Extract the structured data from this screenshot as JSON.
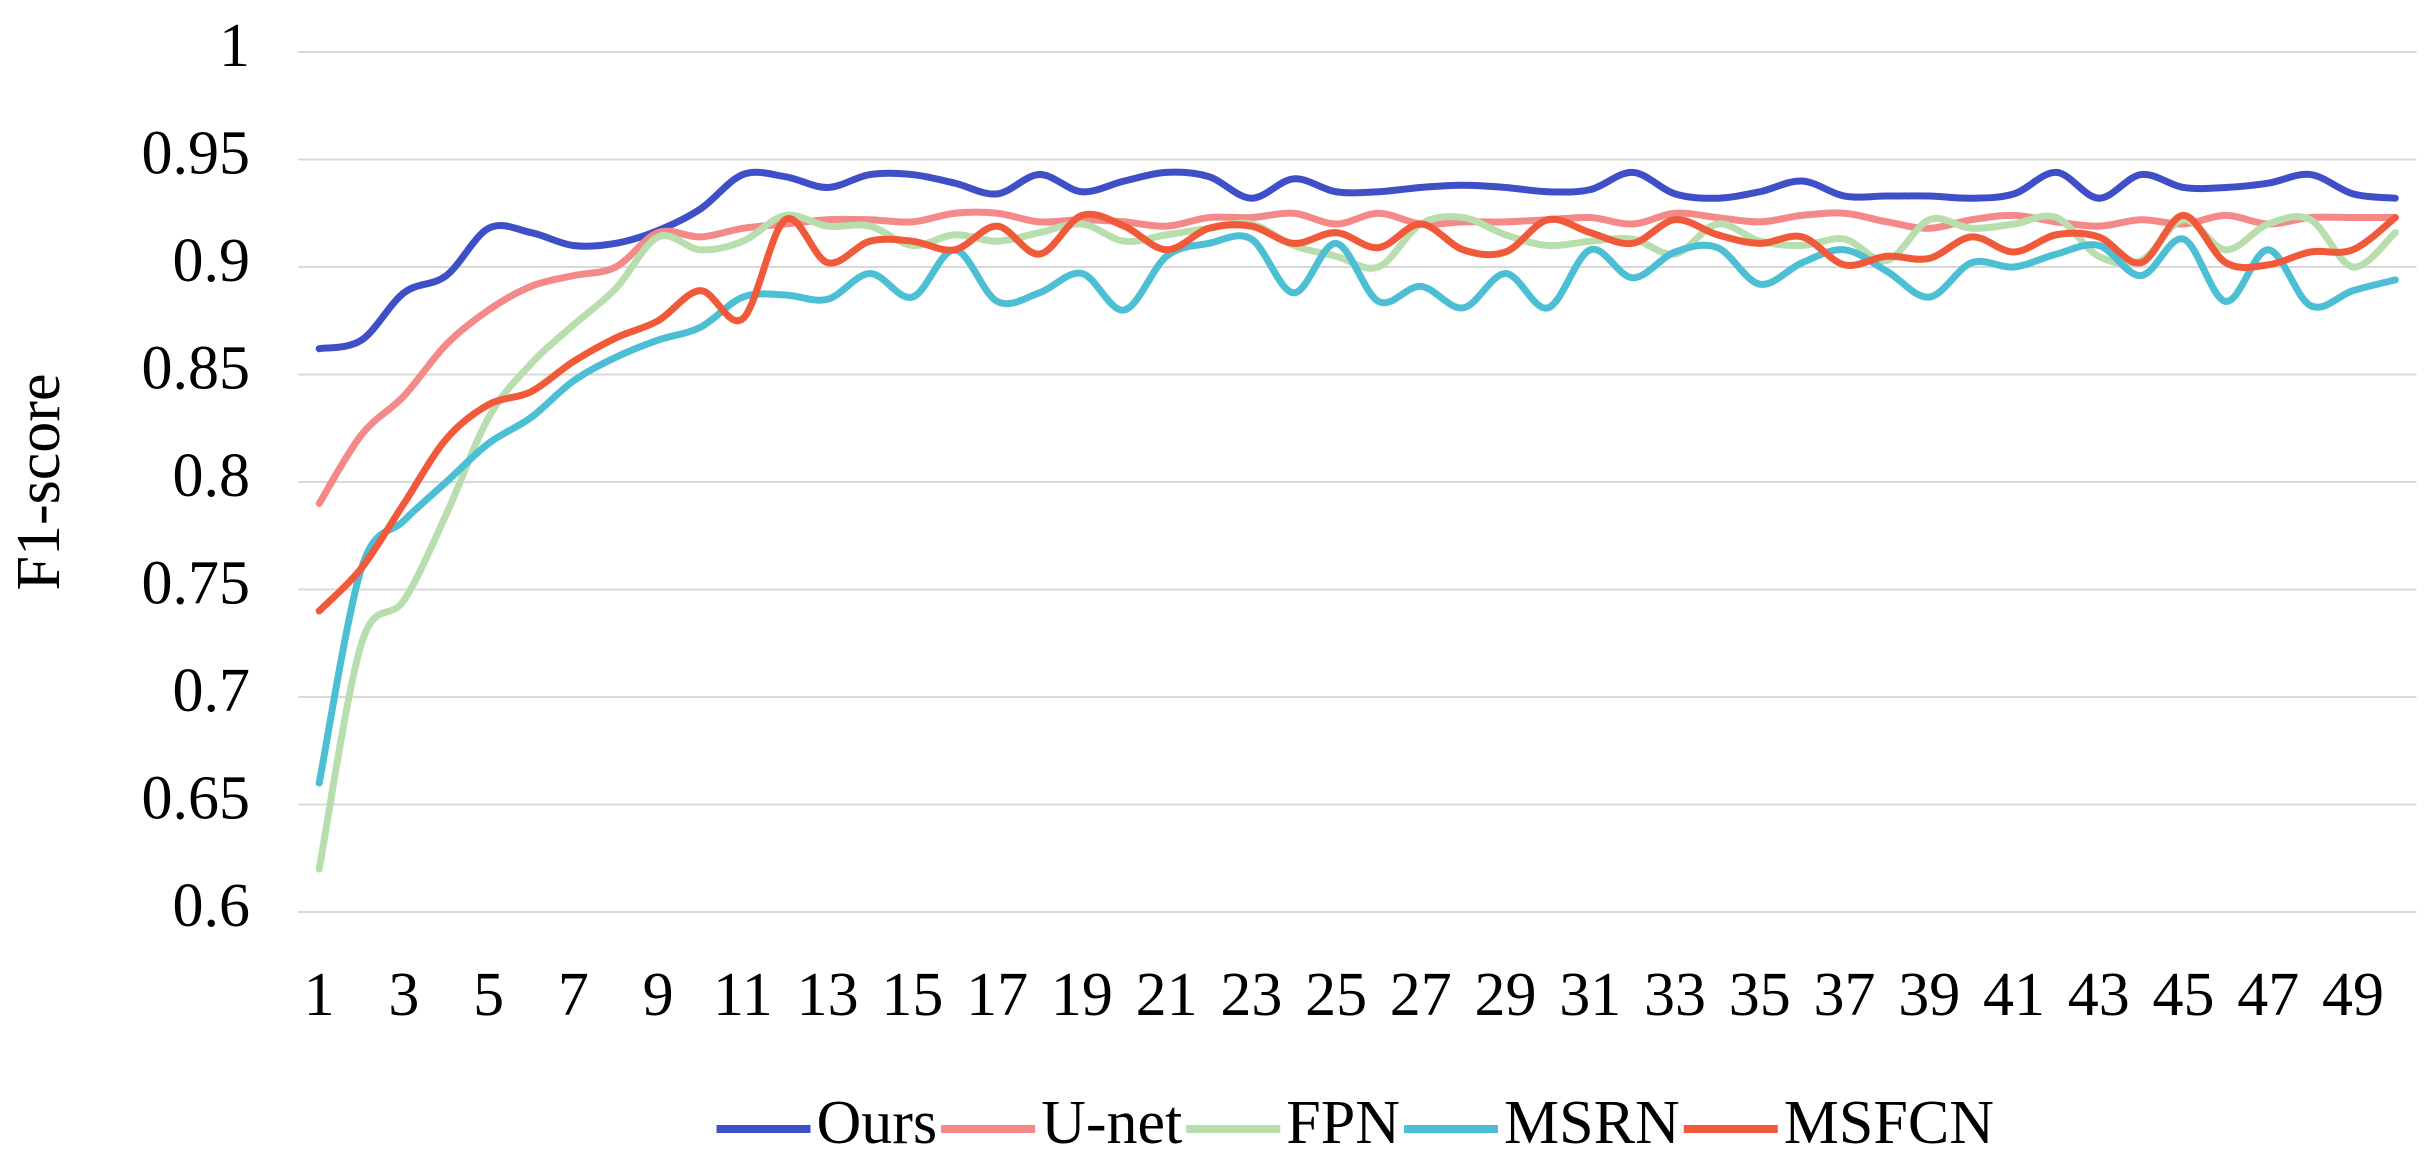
{
  "chart_data": {
    "type": "line",
    "y_label": "F1-score",
    "categories": [
      "1",
      null,
      "3",
      null,
      "5",
      null,
      "7",
      null,
      "9",
      null,
      "11",
      null,
      "13",
      null,
      "15",
      null,
      "17",
      null,
      "19",
      null,
      "21",
      null,
      "23",
      null,
      "25",
      null,
      "27",
      null,
      "29",
      null,
      "31",
      null,
      "33",
      null,
      "35",
      null,
      "37",
      null,
      "39",
      null,
      "41",
      null,
      "43",
      null,
      "45",
      null,
      "47",
      null,
      "49",
      null
    ],
    "ylim": [
      0.6,
      1
    ],
    "yticks": [
      0.6,
      0.65,
      0.7,
      0.75,
      0.8,
      0.85,
      0.9,
      0.95,
      1
    ],
    "grid": true,
    "legend": "bottom",
    "smooth": true,
    "series": [
      {
        "name": "Ours",
        "color": "#3f4fc7",
        "values": [
          0.862,
          0.866,
          0.888,
          0.896,
          0.918,
          0.916,
          0.91,
          0.911,
          0.917,
          0.927,
          0.943,
          0.942,
          0.937,
          0.943,
          0.943,
          0.939,
          0.934,
          0.943,
          0.935,
          0.94,
          0.944,
          0.942,
          0.932,
          0.941,
          0.935,
          0.935,
          0.937,
          0.938,
          0.937,
          0.935,
          0.936,
          0.944,
          0.934,
          0.932,
          0.935,
          0.94,
          0.933,
          0.933,
          0.933,
          0.932,
          0.934,
          0.944,
          0.932,
          0.943,
          0.937,
          0.937,
          0.939,
          0.943,
          0.934,
          0.932
        ]
      },
      {
        "name": "U-net",
        "color": "#f4898a",
        "values": [
          0.79,
          0.822,
          0.84,
          0.864,
          0.88,
          0.891,
          0.896,
          0.9,
          0.916,
          0.914,
          0.918,
          0.92,
          0.922,
          0.922,
          0.921,
          0.925,
          0.925,
          0.921,
          0.922,
          0.921,
          0.919,
          0.923,
          0.923,
          0.925,
          0.92,
          0.925,
          0.92,
          0.921,
          0.921,
          0.922,
          0.923,
          0.92,
          0.925,
          0.923,
          0.921,
          0.924,
          0.925,
          0.921,
          0.918,
          0.922,
          0.924,
          0.921,
          0.919,
          0.922,
          0.92,
          0.924,
          0.92,
          0.923,
          0.923,
          0.923
        ]
      },
      {
        "name": "FPN",
        "color": "#b9deae",
        "values": [
          0.62,
          0.725,
          0.745,
          0.785,
          0.83,
          0.855,
          0.873,
          0.89,
          0.914,
          0.908,
          0.912,
          0.924,
          0.919,
          0.919,
          0.91,
          0.915,
          0.912,
          0.916,
          0.92,
          0.912,
          0.915,
          0.918,
          0.92,
          0.91,
          0.905,
          0.9,
          0.92,
          0.923,
          0.915,
          0.91,
          0.912,
          0.913,
          0.906,
          0.92,
          0.912,
          0.91,
          0.913,
          0.903,
          0.922,
          0.918,
          0.92,
          0.923,
          0.905,
          0.903,
          0.922,
          0.908,
          0.92,
          0.922,
          0.9,
          0.916
        ]
      },
      {
        "name": "MSRN",
        "color": "#4dbfd4",
        "values": [
          0.66,
          0.76,
          0.782,
          0.8,
          0.818,
          0.83,
          0.847,
          0.858,
          0.866,
          0.872,
          0.886,
          0.887,
          0.885,
          0.897,
          0.886,
          0.908,
          0.884,
          0.888,
          0.897,
          0.88,
          0.905,
          0.911,
          0.913,
          0.888,
          0.911,
          0.884,
          0.891,
          0.881,
          0.897,
          0.881,
          0.908,
          0.895,
          0.907,
          0.909,
          0.892,
          0.902,
          0.908,
          0.898,
          0.886,
          0.902,
          0.9,
          0.906,
          0.91,
          0.896,
          0.913,
          0.884,
          0.908,
          0.882,
          0.889,
          0.894
        ]
      },
      {
        "name": "MSFCN",
        "color": "#f05a3a",
        "values": [
          0.74,
          0.76,
          0.79,
          0.82,
          0.836,
          0.842,
          0.856,
          0.867,
          0.875,
          0.889,
          0.876,
          0.922,
          0.902,
          0.912,
          0.912,
          0.908,
          0.919,
          0.906,
          0.924,
          0.919,
          0.908,
          0.918,
          0.919,
          0.911,
          0.916,
          0.909,
          0.92,
          0.908,
          0.907,
          0.922,
          0.916,
          0.911,
          0.922,
          0.915,
          0.911,
          0.914,
          0.901,
          0.905,
          0.904,
          0.914,
          0.907,
          0.915,
          0.914,
          0.902,
          0.924,
          0.902,
          0.901,
          0.907,
          0.908,
          0.923
        ]
      }
    ]
  }
}
